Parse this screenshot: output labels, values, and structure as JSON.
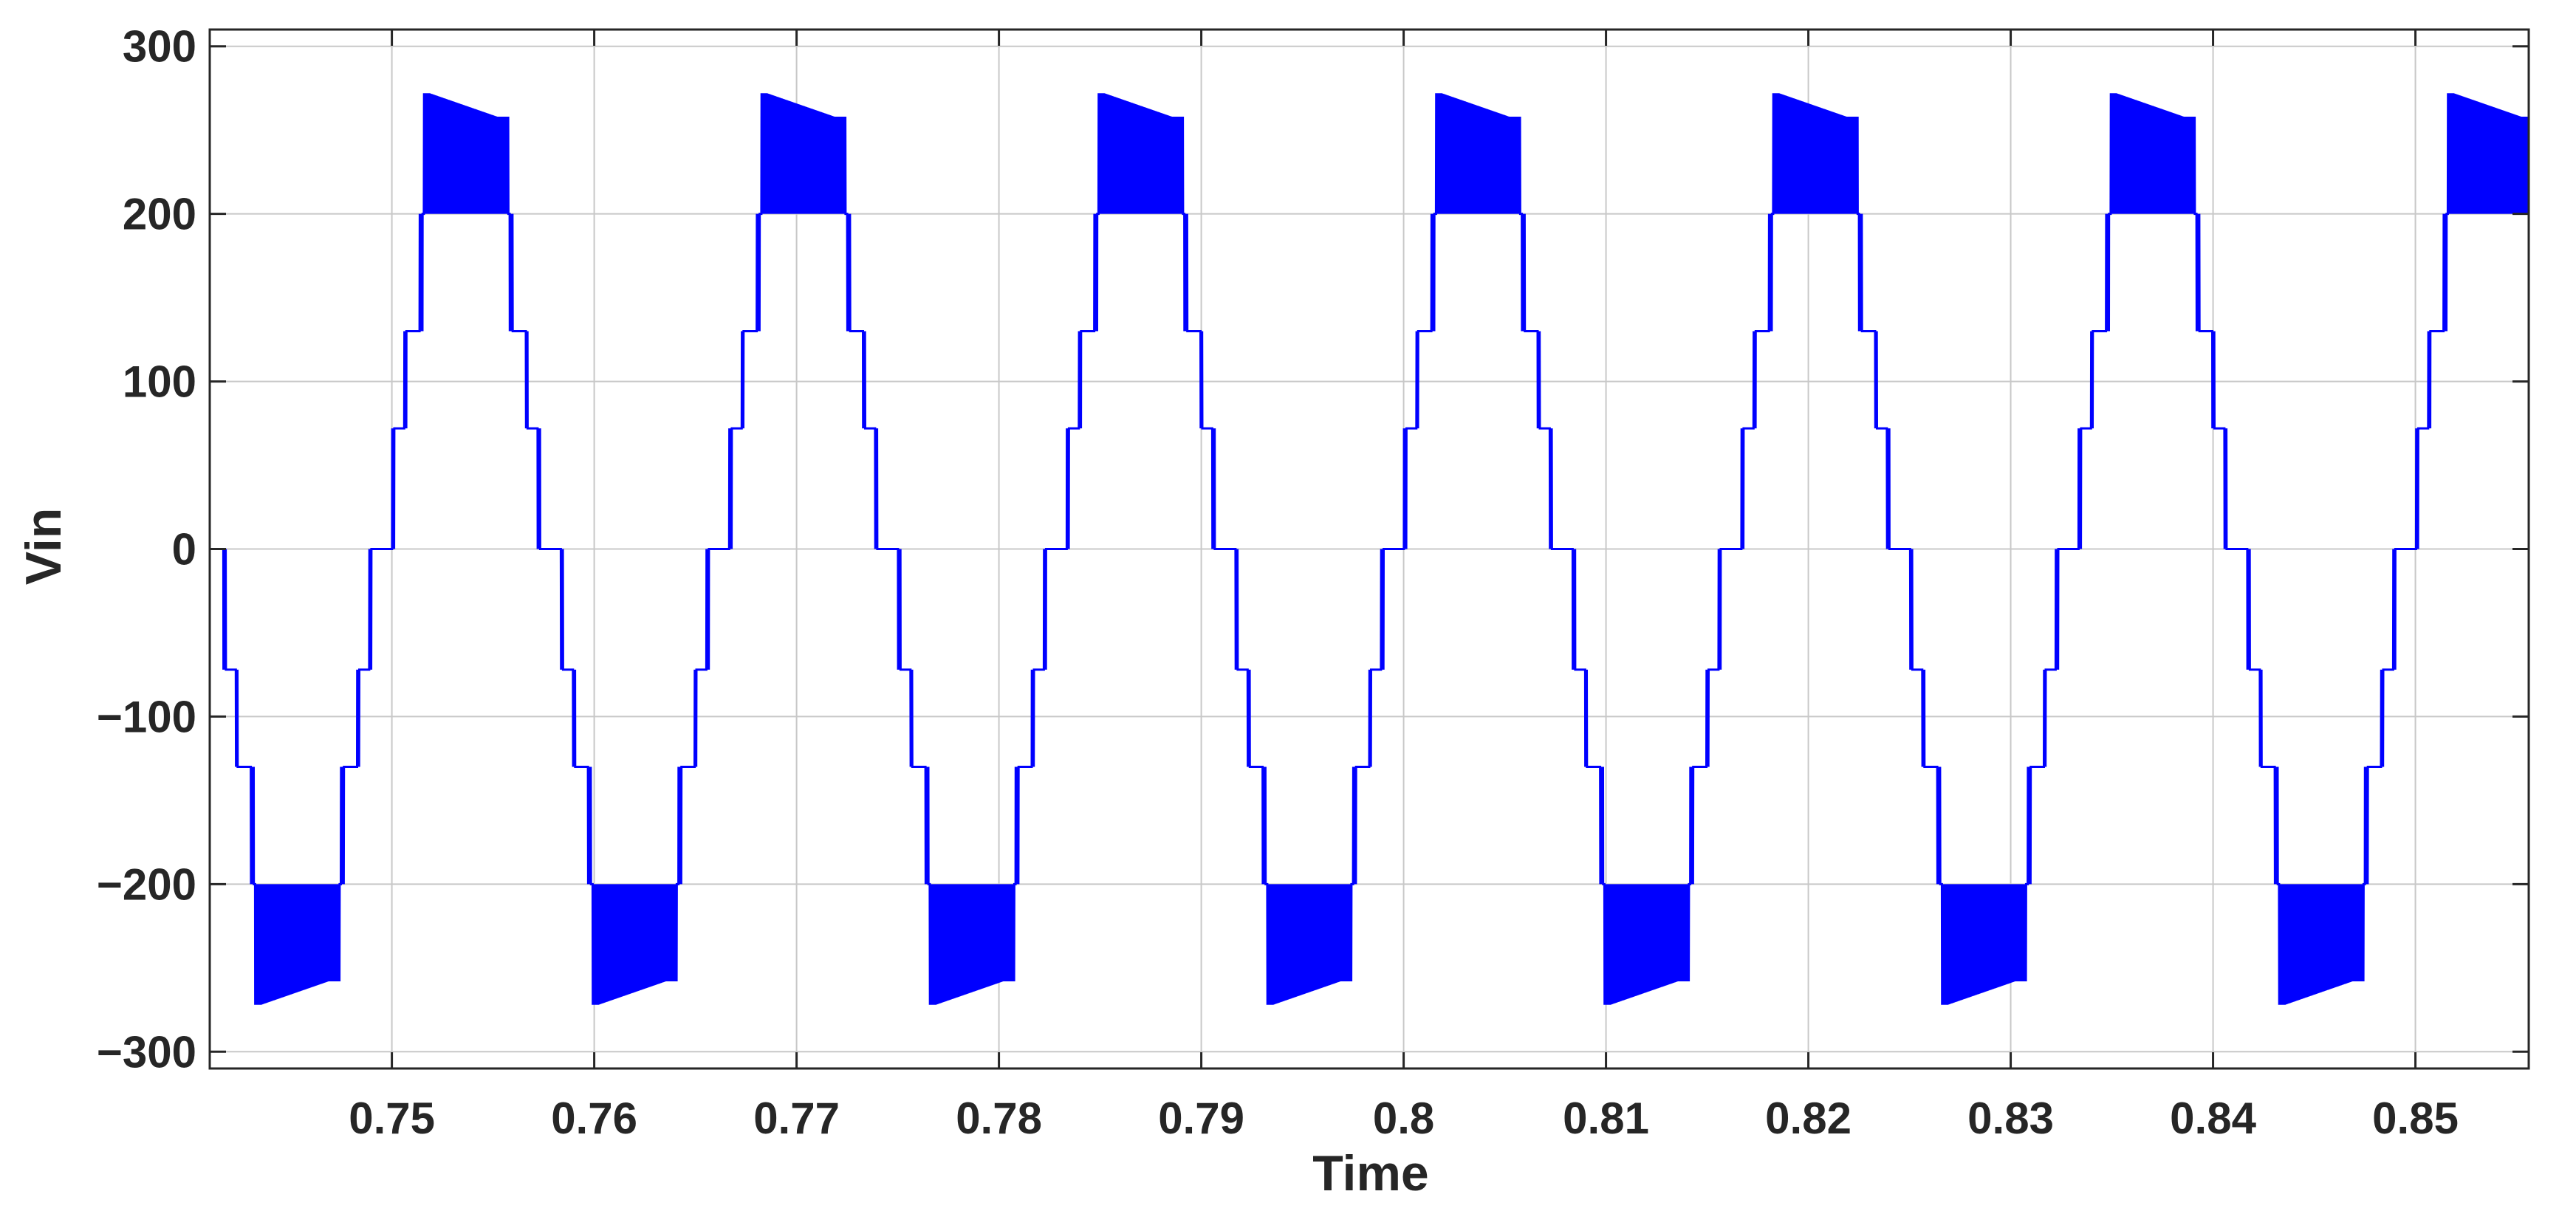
{
  "chart_data": {
    "type": "line",
    "title": "",
    "xlabel": "Time",
    "ylabel": "Vin",
    "xlim": [
      0.741,
      0.8556
    ],
    "ylim": [
      -310,
      310
    ],
    "xticks": [
      0.75,
      0.76,
      0.77,
      0.78,
      0.79,
      0.8,
      0.81,
      0.82,
      0.83,
      0.84,
      0.85
    ],
    "xtick_labels": [
      "0.75",
      "0.76",
      "0.77",
      "0.78",
      "0.79",
      "0.8",
      "0.81",
      "0.82",
      "0.83",
      "0.84",
      "0.85"
    ],
    "yticks": [
      300,
      200,
      100,
      0,
      -100,
      -200,
      -300
    ],
    "ytick_labels": [
      "300",
      "200",
      "100",
      "0",
      "−100",
      "−200",
      "−300"
    ],
    "grid": true,
    "color": "#0000ff",
    "waveform": "staircase multilevel inverter output with PWM switching between adjacent levels",
    "period": 0.01667,
    "first_zero_crossing_rising": 0.7495,
    "levels": [
      0,
      72,
      130,
      200,
      272
    ],
    "switching_bands": [
      {
        "from": 200,
        "to": 272,
        "note": "peak band, upper edge decays toward ~258"
      },
      {
        "from": -200,
        "to": -272,
        "note": "trough band, lower edge rises toward ~-258"
      }
    ],
    "peak_value": 272,
    "trough_value": -272
  }
}
